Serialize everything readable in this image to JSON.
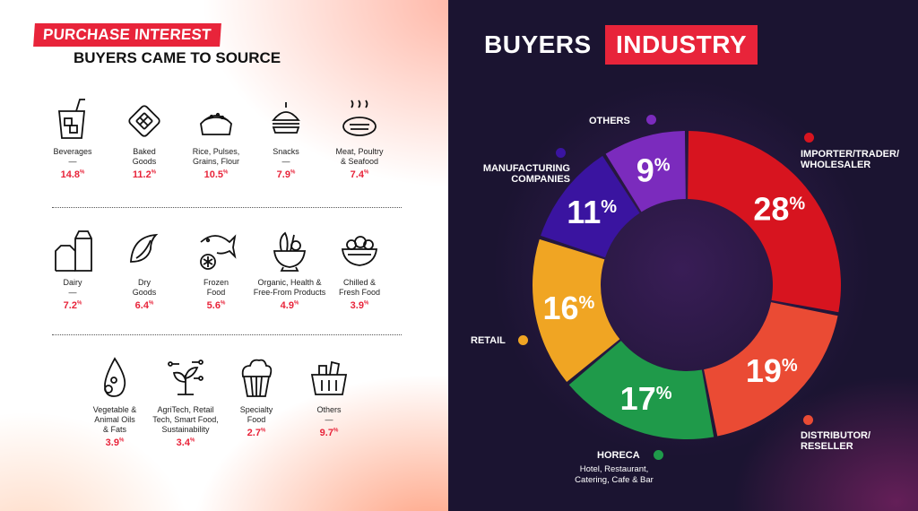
{
  "purchase": {
    "badge": "PURCHASE INTEREST",
    "subtitle": "BUYERS CAME TO SOURCE",
    "categories": [
      {
        "name": "Beverages\n—",
        "value": "14.8",
        "icon": "beverage-glass-icon"
      },
      {
        "name": "Baked\nGoods",
        "value": "11.2",
        "icon": "waffle-icon"
      },
      {
        "name": "Rice, Pulses,\nGrains, Flour",
        "value": "10.5",
        "icon": "grain-sack-icon"
      },
      {
        "name": "Snacks\n—",
        "value": "7.9",
        "icon": "burger-icon"
      },
      {
        "name": "Meat, Poultry\n& Seafood",
        "value": "7.4",
        "icon": "steak-icon"
      },
      {
        "name": "Dairy\n—",
        "value": "7.2",
        "icon": "milk-carton-icon"
      },
      {
        "name": "Dry\nGoods",
        "value": "6.4",
        "icon": "dried-fruit-icon"
      },
      {
        "name": "Frozen\nFood",
        "value": "5.6",
        "icon": "frozen-fish-icon"
      },
      {
        "name": "Organic, Health &\nFree-From Products",
        "value": "4.9",
        "icon": "veggie-bowl-icon"
      },
      {
        "name": "Chilled &\nFresh Food",
        "value": "3.9",
        "icon": "salad-bowl-icon"
      },
      {
        "name": "Vegetable &\nAnimal Oils\n& Fats",
        "value": "3.9",
        "icon": "oil-drop-icon"
      },
      {
        "name": "AgriTech, Retail\nTech, Smart Food,\nSustainability",
        "value": "3.4",
        "icon": "sprout-circuit-icon"
      },
      {
        "name": "Specialty\nFood",
        "value": "2.7",
        "icon": "cupcake-icon"
      },
      {
        "name": "Others\n—",
        "value": "9.7",
        "icon": "basket-icon"
      }
    ],
    "percent_sign": "%"
  },
  "industry": {
    "title_a": "BUYERS",
    "title_b": "INDUSTRY",
    "horeca_sub": "Hotel, Restaurant,\nCatering, Cafe & Bar"
  },
  "chart_data": {
    "type": "pie",
    "title": "BUYERS INDUSTRY",
    "donut": true,
    "slices": [
      {
        "label": "IMPORTER/TRADER/ WHOLESALER",
        "value": 28,
        "color": "#d7141f"
      },
      {
        "label": "DISTRIBUTOR/ RESELLER",
        "value": 19,
        "color": "#ea4b34"
      },
      {
        "label": "HORECA",
        "value": 17,
        "color": "#1f9a4a"
      },
      {
        "label": "RETAIL",
        "value": 16,
        "color": "#f0a523"
      },
      {
        "label": "MANUFACTURING COMPANIES",
        "value": 11,
        "color": "#3a14a0"
      },
      {
        "label": "OTHERS",
        "value": 9,
        "color": "#7b2bbd"
      }
    ],
    "value_suffix": "%"
  }
}
